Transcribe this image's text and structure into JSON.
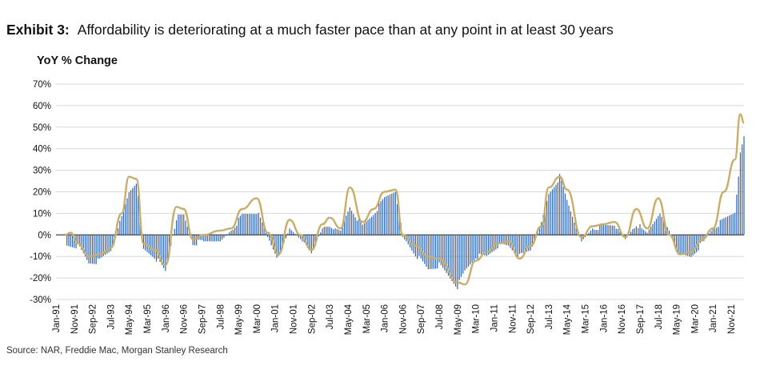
{
  "exhibit": {
    "label": "Exhibit 3:",
    "title": "Affordability is deteriorating at a much faster pace than at any point in at least 30 years"
  },
  "source": "Source: NAR, Freddie Mac, Morgan Stanley Research",
  "colors": {
    "bars": "#2e64b5",
    "line": "#c9ad68",
    "zero_line": "#555555",
    "grid": "#d9d9d9"
  },
  "chart_data": {
    "type": "bar",
    "xlabel": "",
    "ylabel": "YoY % Change",
    "ylim": [
      -30,
      70
    ],
    "y_ticks": [
      "-30%",
      "-20%",
      "-10%",
      "0%",
      "10%",
      "20%",
      "30%",
      "40%",
      "50%",
      "60%",
      "70%"
    ],
    "x_ticks": [
      "Jan-91",
      "Nov-91",
      "Sep-92",
      "Jul-93",
      "May-94",
      "Mar-95",
      "Jan-96",
      "Nov-96",
      "Sep-97",
      "Jul-98",
      "May-99",
      "Mar-00",
      "Jan-01",
      "Nov-01",
      "Sep-02",
      "Jul-03",
      "May-04",
      "Mar-05",
      "Jan-06",
      "Nov-06",
      "Sep-07",
      "Jul-08",
      "May-09",
      "Mar-10",
      "Jan-11",
      "Nov-11",
      "Sep-12",
      "Jul-13",
      "May-14",
      "Mar-15",
      "Jan-16",
      "Nov-16",
      "Sep-17",
      "Jul-18",
      "May-19",
      "Mar-20",
      "Jan-21",
      "Nov-21"
    ],
    "x_range": [
      "Jan-91",
      "Jun-22"
    ],
    "grid": true,
    "legend": "none",
    "series": [
      {
        "kind": "bar",
        "x": [
          "Jul-91",
          "Jan-92",
          "Jul-92",
          "Jan-93",
          "Jul-93",
          "Jan-94",
          "May-94",
          "Sep-94",
          "Jan-95",
          "Jul-95",
          "Jan-96",
          "Jul-96",
          "Nov-96",
          "Apr-97",
          "Oct-97",
          "Jul-98",
          "Jan-99",
          "Jul-99",
          "Mar-00",
          "Sep-00",
          "Mar-01",
          "Sep-01",
          "Mar-02",
          "Sep-02",
          "Mar-03",
          "Jul-03",
          "Jan-04",
          "Jun-04",
          "Jan-05",
          "Jul-05",
          "Jan-06",
          "Jul-06",
          "Nov-06",
          "Jun-07",
          "Jan-08",
          "Jul-08",
          "May-09",
          "Sep-09",
          "Mar-10",
          "Sep-10",
          "Mar-11",
          "Sep-11",
          "Mar-12",
          "Sep-12",
          "Mar-13",
          "Jul-13",
          "Jan-14",
          "May-14",
          "Jan-15",
          "Jul-15",
          "Jan-16",
          "Jul-16",
          "Jan-17",
          "Jul-17",
          "Jan-18",
          "Jul-18",
          "Jan-19",
          "Jul-19",
          "Jan-20",
          "Jul-20",
          "Jan-21",
          "Jul-21",
          "Jan-22",
          "Apr-22",
          "Jun-22"
        ],
        "values": [
          -5,
          -5,
          -13,
          -12,
          -7,
          8,
          20,
          25,
          -7,
          -10,
          -17,
          8,
          9,
          -4,
          -3,
          -3,
          2,
          9,
          11,
          -1,
          -11,
          3,
          -2,
          -8,
          3,
          4,
          2,
          13,
          4,
          10,
          17,
          21,
          -1,
          -9,
          -16,
          -14,
          -24,
          -17,
          -10,
          -10,
          -5,
          -5,
          -10,
          -7,
          5,
          19,
          27,
          16,
          -3,
          3,
          4,
          5,
          -2,
          5,
          1,
          10,
          2,
          -10,
          -10,
          -4,
          3,
          7,
          11,
          37,
          45
        ]
      },
      {
        "kind": "line",
        "x": [
          "Jun-91",
          "Sep-91",
          "Jan-92",
          "Jul-92",
          "Jan-93",
          "Jul-93",
          "Jan-94",
          "May-94",
          "Sep-94",
          "Jan-95",
          "Jul-95",
          "Jan-96",
          "Jul-96",
          "Nov-96",
          "Apr-97",
          "Oct-97",
          "Jul-98",
          "Jan-99",
          "Jul-99",
          "Mar-00",
          "Sep-00",
          "Mar-01",
          "Sep-01",
          "Mar-02",
          "Sep-02",
          "Mar-03",
          "Jul-03",
          "Jan-04",
          "Jun-04",
          "Jan-05",
          "Jul-05",
          "Jan-06",
          "Jul-06",
          "Nov-06",
          "Jun-07",
          "Jan-08",
          "Jul-08",
          "May-09",
          "Sep-09",
          "Mar-10",
          "Sep-10",
          "Mar-11",
          "Sep-11",
          "Mar-12",
          "Sep-12",
          "Mar-13",
          "Jul-13",
          "Jan-14",
          "May-14",
          "Jan-15",
          "Jul-15",
          "Jan-16",
          "Jul-16",
          "Jan-17",
          "Jul-17",
          "Jan-18",
          "Jul-18",
          "Jan-19",
          "Jul-19",
          "Jan-20",
          "Jul-20",
          "Jan-21",
          "Jul-21",
          "Jan-22",
          "Apr-22",
          "Jun-22"
        ],
        "values": [
          0,
          1,
          -4,
          -10,
          -9,
          -6,
          10,
          27,
          26,
          -4,
          -7,
          -14,
          13,
          12,
          -2,
          0,
          2,
          3,
          12,
          17,
          1,
          -9,
          7,
          0,
          -7,
          5,
          8,
          3,
          22,
          6,
          12,
          20,
          21,
          0,
          -5,
          -10,
          -11,
          -22,
          -23,
          -12,
          -8,
          -4,
          -3,
          -11,
          -5,
          4,
          22,
          27,
          21,
          -1,
          4,
          5,
          6,
          -1,
          12,
          3,
          17,
          0,
          -9,
          -8,
          -2,
          3,
          20,
          35,
          56,
          52
        ]
      }
    ]
  }
}
